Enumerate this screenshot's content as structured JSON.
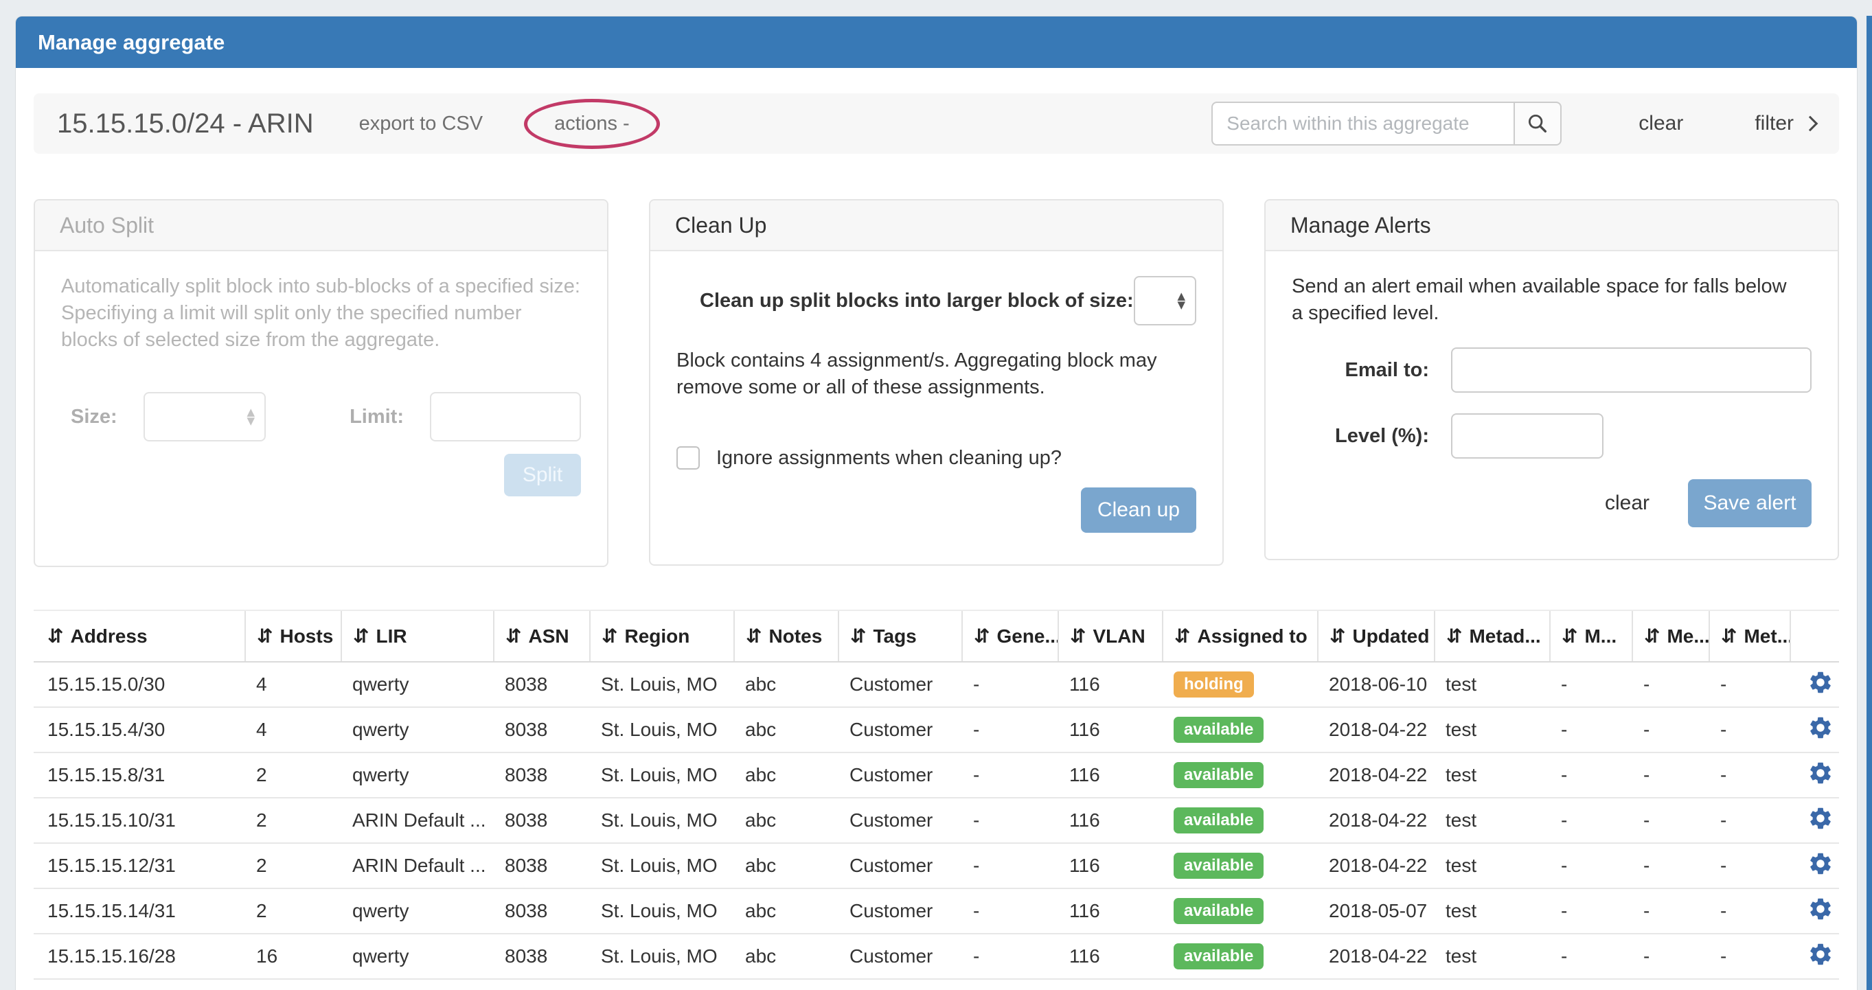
{
  "window": {
    "title": "Manage aggregate"
  },
  "toolbar": {
    "title": "15.15.15.0/24 - ARIN",
    "export_csv_label": "export to CSV",
    "actions_label": "actions -",
    "search_placeholder": "Search within this aggregate",
    "clear_label": "clear",
    "filter_label": "filter"
  },
  "panels": {
    "auto_split": {
      "title": "Auto Split",
      "description": "Automatically split block into sub-blocks of a specified size: Specifiying a limit will split only the specified number blocks of selected size from the aggregate.",
      "size_label": "Size:",
      "limit_label": "Limit:",
      "split_button": "Split"
    },
    "clean_up": {
      "title": "Clean Up",
      "size_label": "Clean up split blocks into larger block of size:",
      "note": "Block contains 4 assignment/s. Aggregating block may remove some or all of these assignments.",
      "checkbox_label": "Ignore assignments when cleaning up?",
      "button": "Clean up"
    },
    "manage_alerts": {
      "title": "Manage Alerts",
      "description": "Send an alert email when available space for falls below a specified level.",
      "email_label": "Email to:",
      "level_label": "Level (%):",
      "clear_label": "clear",
      "save_button": "Save alert"
    }
  },
  "table": {
    "sort_icon": "⇵",
    "columns": [
      {
        "key": "address",
        "label": "Address"
      },
      {
        "key": "hosts",
        "label": "Hosts"
      },
      {
        "key": "lir",
        "label": "LIR"
      },
      {
        "key": "asn",
        "label": "ASN"
      },
      {
        "key": "region",
        "label": "Region"
      },
      {
        "key": "notes",
        "label": "Notes"
      },
      {
        "key": "tags",
        "label": "Tags"
      },
      {
        "key": "gene",
        "label": "Gene..."
      },
      {
        "key": "vlan",
        "label": "VLAN"
      },
      {
        "key": "assigned",
        "label": "Assigned to"
      },
      {
        "key": "updated",
        "label": "Updated"
      },
      {
        "key": "metad",
        "label": "Metad..."
      },
      {
        "key": "m1",
        "label": "M..."
      },
      {
        "key": "me",
        "label": "Me..."
      },
      {
        "key": "met",
        "label": "Met..."
      }
    ],
    "status_colors": {
      "holding": "#f0ad4e",
      "available": "#5cb85c"
    },
    "rows": [
      {
        "address": "15.15.15.0/30",
        "hosts": "4",
        "lir": "qwerty",
        "asn": "8038",
        "region": "St. Louis, MO",
        "notes": "abc",
        "tags": "Customer",
        "gene": "-",
        "vlan": "116",
        "assigned": "holding",
        "updated": "2018-06-10",
        "metad": "test",
        "m1": "-",
        "me": "-",
        "met": "-"
      },
      {
        "address": "15.15.15.4/30",
        "hosts": "4",
        "lir": "qwerty",
        "asn": "8038",
        "region": "St. Louis, MO",
        "notes": "abc",
        "tags": "Customer",
        "gene": "-",
        "vlan": "116",
        "assigned": "available",
        "updated": "2018-04-22",
        "metad": "test",
        "m1": "-",
        "me": "-",
        "met": "-"
      },
      {
        "address": "15.15.15.8/31",
        "hosts": "2",
        "lir": "qwerty",
        "asn": "8038",
        "region": "St. Louis, MO",
        "notes": "abc",
        "tags": "Customer",
        "gene": "-",
        "vlan": "116",
        "assigned": "available",
        "updated": "2018-04-22",
        "metad": "test",
        "m1": "-",
        "me": "-",
        "met": "-"
      },
      {
        "address": "15.15.15.10/31",
        "hosts": "2",
        "lir": "ARIN Default ...",
        "asn": "8038",
        "region": "St. Louis, MO",
        "notes": "abc",
        "tags": "Customer",
        "gene": "-",
        "vlan": "116",
        "assigned": "available",
        "updated": "2018-04-22",
        "metad": "test",
        "m1": "-",
        "me": "-",
        "met": "-"
      },
      {
        "address": "15.15.15.12/31",
        "hosts": "2",
        "lir": "ARIN Default ...",
        "asn": "8038",
        "region": "St. Louis, MO",
        "notes": "abc",
        "tags": "Customer",
        "gene": "-",
        "vlan": "116",
        "assigned": "available",
        "updated": "2018-04-22",
        "metad": "test",
        "m1": "-",
        "me": "-",
        "met": "-"
      },
      {
        "address": "15.15.15.14/31",
        "hosts": "2",
        "lir": "qwerty",
        "asn": "8038",
        "region": "St. Louis, MO",
        "notes": "abc",
        "tags": "Customer",
        "gene": "-",
        "vlan": "116",
        "assigned": "available",
        "updated": "2018-05-07",
        "metad": "test",
        "m1": "-",
        "me": "-",
        "met": "-"
      },
      {
        "address": "15.15.15.16/28",
        "hosts": "16",
        "lir": "qwerty",
        "asn": "8038",
        "region": "St. Louis, MO",
        "notes": "abc",
        "tags": "Customer",
        "gene": "-",
        "vlan": "116",
        "assigned": "available",
        "updated": "2018-04-22",
        "metad": "test",
        "m1": "-",
        "me": "-",
        "met": "-"
      }
    ]
  },
  "colors": {
    "header_blue": "#3879b6",
    "button_blue": "#7aa6ce",
    "holding_orange": "#f0ad4e",
    "available_green": "#5cb85c",
    "gear_blue": "#3a68a8",
    "annotation": "#c23a67"
  }
}
